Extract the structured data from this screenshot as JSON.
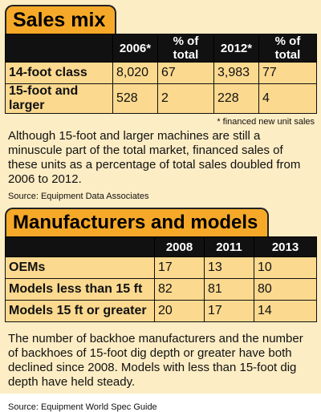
{
  "sales_mix": {
    "title": "Sales mix",
    "columns": [
      "",
      "2006*",
      "% of total",
      "2012*",
      "% of total"
    ],
    "rows": [
      {
        "label": "14-foot class",
        "v2006": "8,020",
        "p2006": "67",
        "v2012": "3,983",
        "p2012": "77"
      },
      {
        "label": "15-foot and larger",
        "v2006": "528",
        "p2006": "2",
        "v2012": "228",
        "p2012": "4"
      }
    ],
    "footnote": "* financed new unit sales",
    "paragraph": "Although 15-foot and larger machines are still a minuscule part of the total market, financed sales of these units as a percentage of total sales doubled from 2006 to 2012.",
    "source": "Source: Equipment Data Associates"
  },
  "manufacturers": {
    "title": "Manufacturers and models",
    "columns": [
      "",
      "2008",
      "2011",
      "2013"
    ],
    "rows": [
      {
        "label": "OEMs",
        "y2008": "17",
        "y2011": "13",
        "y2013": "10"
      },
      {
        "label": "Models less than 15 ft",
        "y2008": "82",
        "y2011": "81",
        "y2013": "80"
      },
      {
        "label": "Models 15 ft or greater",
        "y2008": "20",
        "y2011": "17",
        "y2013": "14"
      }
    ],
    "paragraph": "The number of backhoe manufacturers and the number of backhoes of 15-foot dig depth or greater have both declined since 2008. Models with less than 15-foot dig depth have held steady.",
    "source": "Source: Equipment World Spec Guide"
  },
  "colors": {
    "background": "#fdedc4",
    "tab": "#f6a928",
    "header": "#111111",
    "cell": "#fbd98f"
  }
}
